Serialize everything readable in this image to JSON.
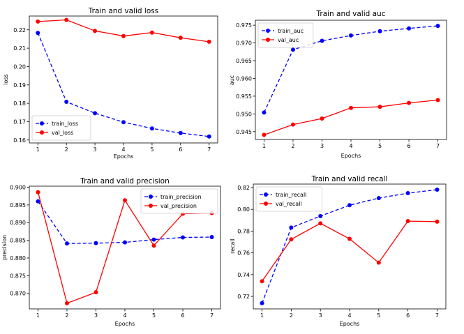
{
  "chart_data": [
    {
      "type": "line",
      "title": "Train and valid loss",
      "xlabel": "Epochs",
      "ylabel": "loss",
      "x": [
        1,
        2,
        3,
        4,
        5,
        6,
        7
      ],
      "xlim": [
        0.7,
        7.3
      ],
      "ylim": [
        0.1584,
        0.2275
      ],
      "yticks": [
        0.16,
        0.17,
        0.18,
        0.19,
        0.2,
        0.21,
        0.22
      ],
      "ytick_labels": [
        "0.16",
        "0.17",
        "0.18",
        "0.19",
        "0.20",
        "0.21",
        "0.22"
      ],
      "legend_loc": "lower-left",
      "series": [
        {
          "name": "train_loss",
          "color": "#0000ff",
          "style": "dashed",
          "values": [
            0.2183,
            0.1808,
            0.1746,
            0.1697,
            0.1663,
            0.1638,
            0.1619
          ]
        },
        {
          "name": "val_loss",
          "color": "#ff0000",
          "style": "solid",
          "values": [
            0.2245,
            0.2254,
            0.2194,
            0.2166,
            0.2185,
            0.2157,
            0.2135
          ]
        }
      ]
    },
    {
      "type": "line",
      "title": "Train and valid auc",
      "xlabel": "Epochs",
      "ylabel": "auc",
      "x": [
        1,
        2,
        3,
        4,
        5,
        6,
        7
      ],
      "xlim": [
        0.7,
        7.3
      ],
      "ylim": [
        0.9428,
        0.9764
      ],
      "yticks": [
        0.945,
        0.95,
        0.955,
        0.96,
        0.965,
        0.97,
        0.975
      ],
      "ytick_labels": [
        "0.945",
        "0.950",
        "0.955",
        "0.960",
        "0.965",
        "0.970",
        "0.975"
      ],
      "legend_loc": "upper-left",
      "series": [
        {
          "name": "train_auc",
          "color": "#0000ff",
          "style": "dashed",
          "values": [
            0.9504,
            0.9681,
            0.9706,
            0.9721,
            0.9733,
            0.9741,
            0.9748
          ]
        },
        {
          "name": "val_auc",
          "color": "#ff0000",
          "style": "solid",
          "values": [
            0.9441,
            0.947,
            0.9487,
            0.9517,
            0.952,
            0.9531,
            0.9539
          ]
        }
      ]
    },
    {
      "type": "line",
      "title": "Train and valid precision",
      "xlabel": "Epochs",
      "ylabel": "precision",
      "x": [
        1,
        2,
        3,
        4,
        5,
        6,
        7
      ],
      "xlim": [
        0.7,
        7.3
      ],
      "ylim": [
        0.8656,
        0.9003
      ],
      "yticks": [
        0.87,
        0.875,
        0.88,
        0.885,
        0.89,
        0.895,
        0.9
      ],
      "ytick_labels": [
        "0.870",
        "0.875",
        "0.880",
        "0.885",
        "0.890",
        "0.895",
        "0.900"
      ],
      "legend_loc": "upper-right",
      "series": [
        {
          "name": "train_precision",
          "color": "#0000ff",
          "style": "dashed",
          "values": [
            0.896,
            0.8841,
            0.8842,
            0.8844,
            0.8852,
            0.8858,
            0.8859
          ]
        },
        {
          "name": "val_precision",
          "color": "#ff0000",
          "style": "solid",
          "values": [
            0.8986,
            0.8672,
            0.8703,
            0.8963,
            0.8835,
            0.8925,
            0.8927
          ]
        }
      ]
    },
    {
      "type": "line",
      "title": "Train and valid recall",
      "xlabel": "Epochs",
      "ylabel": "recall",
      "x": [
        1,
        2,
        3,
        4,
        5,
        6,
        7
      ],
      "xlim": [
        0.7,
        7.3
      ],
      "ylim": [
        0.7085,
        0.8232
      ],
      "yticks": [
        0.72,
        0.74,
        0.76,
        0.78,
        0.8,
        0.82
      ],
      "ytick_labels": [
        "0.72",
        "0.74",
        "0.76",
        "0.78",
        "0.80",
        "0.82"
      ],
      "legend_loc": "upper-left",
      "series": [
        {
          "name": "train_recall",
          "color": "#0000ff",
          "style": "dashed",
          "values": [
            0.7138,
            0.7832,
            0.7938,
            0.8038,
            0.8103,
            0.8149,
            0.8181
          ]
        },
        {
          "name": "val_recall",
          "color": "#ff0000",
          "style": "solid",
          "values": [
            0.7339,
            0.7724,
            0.7871,
            0.7729,
            0.751,
            0.7892,
            0.7887
          ]
        }
      ]
    }
  ]
}
